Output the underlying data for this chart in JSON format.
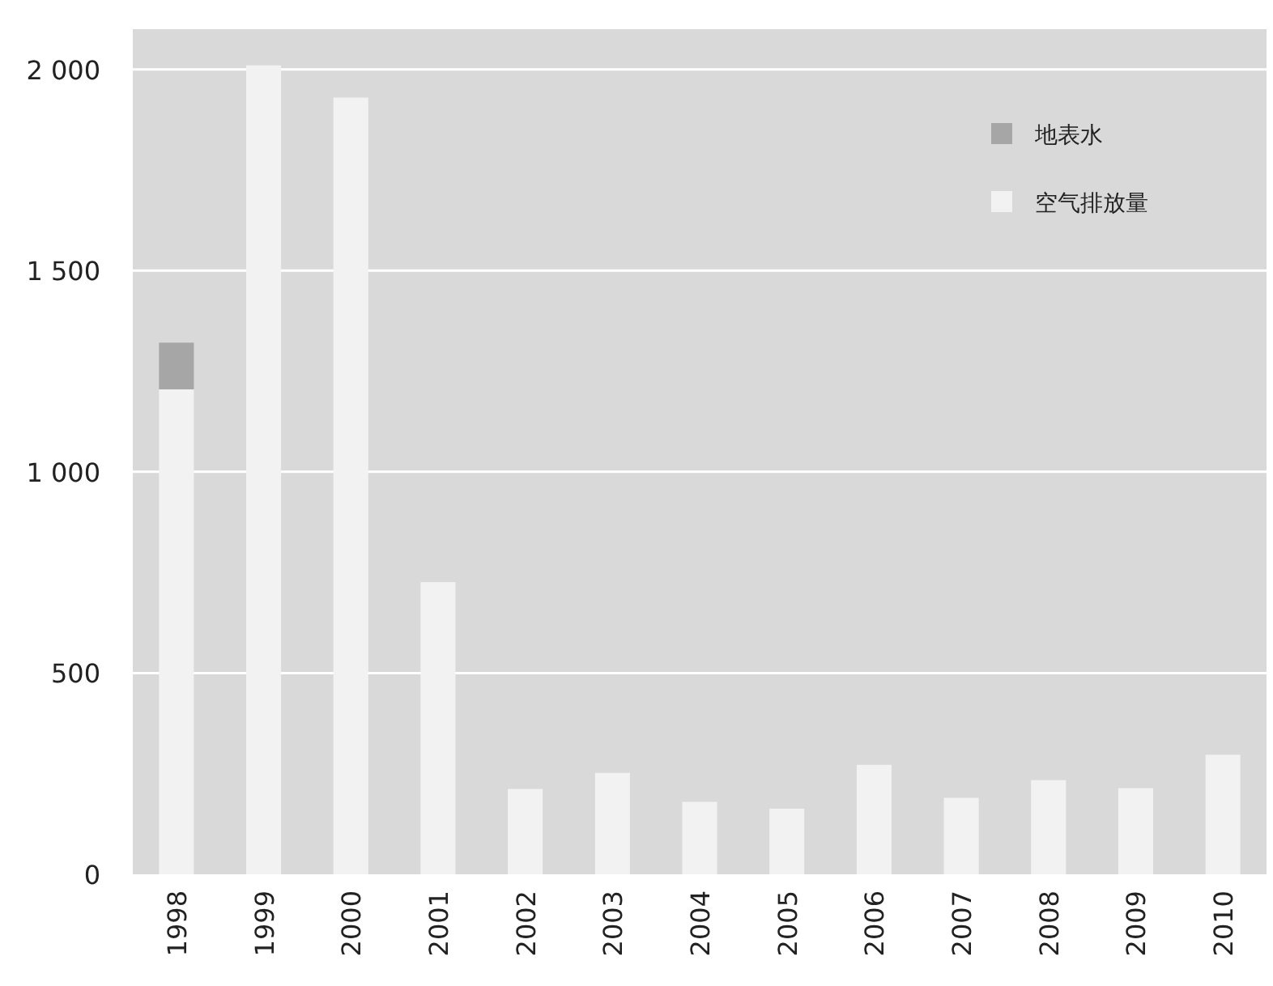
{
  "chart_data": {
    "type": "bar",
    "stacked": true,
    "categories": [
      "1998",
      "1999",
      "2000",
      "2001",
      "2002",
      "2003",
      "2004",
      "2005",
      "2006",
      "2007",
      "2008",
      "2009",
      "2010"
    ],
    "series": [
      {
        "name": "空气排放量",
        "color": "#f2f2f2",
        "values": [
          1205,
          2010,
          1930,
          726,
          212,
          252,
          180,
          163,
          272,
          190,
          234,
          214,
          297
        ]
      },
      {
        "name": "地表水",
        "color": "#a6a6a6",
        "values": [
          116,
          null,
          null,
          null,
          null,
          null,
          null,
          null,
          null,
          null,
          null,
          null,
          null
        ]
      }
    ],
    "ylim": [
      0,
      2100
    ],
    "yticks": [
      0,
      500,
      {
        "value": 1000,
        "label": "1 000"
      },
      {
        "value": 1500,
        "label": "1 500"
      },
      {
        "value": 2000,
        "label": "2 000"
      }
    ],
    "grid": "y",
    "legend": "top right"
  }
}
